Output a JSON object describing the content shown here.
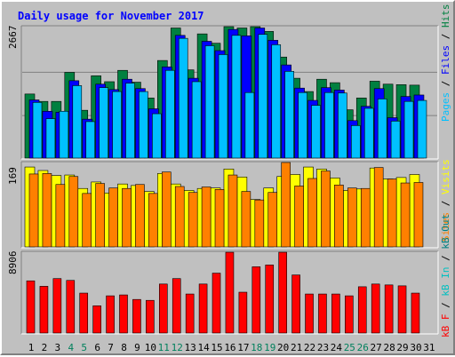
{
  "title": "Daily usage for November 2017",
  "colors": {
    "pages": "#00c0ff",
    "files": "#0000ff",
    "hits": "#008040",
    "visits": "#ffff00",
    "sites": "#ff8000",
    "kbin": "#00c0c0",
    "kbout": "#008080",
    "kbf": "#ff0000",
    "weekend_day": "#00805c",
    "weekday_day": "#000000",
    "title": "#0000ff"
  },
  "chart_data": [
    {
      "type": "bar",
      "name": "hits-files-pages",
      "categories": [
        "1",
        "2",
        "3",
        "4",
        "5",
        "6",
        "7",
        "8",
        "9",
        "10",
        "11",
        "12",
        "13",
        "14",
        "15",
        "16",
        "17",
        "18",
        "19",
        "20",
        "21",
        "22",
        "23",
        "24",
        "25",
        "26",
        "27",
        "28",
        "29",
        "30",
        "31"
      ],
      "ymax_label": "2667",
      "ylim": [
        0,
        2667
      ],
      "legend": [
        "Pages",
        "Files",
        "Hits"
      ],
      "series": [
        {
          "name": "Hits",
          "values": [
            1300,
            1150,
            1150,
            1740,
            970,
            1670,
            1550,
            1780,
            1540,
            1220,
            1980,
            2640,
            1790,
            2520,
            2330,
            2770,
            2640,
            2770,
            2570,
            2050,
            1620,
            1350,
            1600,
            1530,
            980,
            1220,
            1560,
            1500,
            1490,
            1480,
            0
          ]
        },
        {
          "name": "Files",
          "values": [
            1180,
            950,
            930,
            1570,
            790,
            1500,
            1390,
            1600,
            1410,
            1000,
            1850,
            2490,
            1620,
            2370,
            2180,
            2610,
            2480,
            2640,
            2390,
            1890,
            1420,
            1170,
            1430,
            1380,
            760,
            1050,
            1410,
            820,
            1250,
            1280,
            0
          ]
        },
        {
          "name": "Pages",
          "values": [
            1130,
            800,
            950,
            1470,
            740,
            1430,
            1350,
            1520,
            1350,
            900,
            1780,
            2430,
            1550,
            2280,
            2100,
            2490,
            1330,
            2510,
            2300,
            1760,
            1330,
            1070,
            1330,
            1320,
            660,
            1010,
            1200,
            750,
            1150,
            1170,
            0
          ]
        }
      ]
    },
    {
      "type": "bar",
      "name": "visits-sites",
      "categories": [
        "1",
        "2",
        "3",
        "4",
        "5",
        "6",
        "7",
        "8",
        "9",
        "10",
        "11",
        "12",
        "13",
        "14",
        "15",
        "16",
        "17",
        "18",
        "19",
        "20",
        "21",
        "22",
        "23",
        "24",
        "25",
        "26",
        "27",
        "28",
        "29",
        "30",
        "31"
      ],
      "ymax_label": "169",
      "ylim": [
        0,
        169
      ],
      "legend": [
        "Sites",
        "Visits"
      ],
      "series": [
        {
          "name": "Visits",
          "values": [
            160,
            153,
            143,
            144,
            117,
            130,
            108,
            126,
            123,
            111,
            147,
            126,
            113,
            117,
            118,
            156,
            140,
            95,
            118,
            141,
            145,
            160,
            156,
            138,
            113,
            116,
            158,
            136,
            139,
            145,
            0
          ]
        },
        {
          "name": "Sites",
          "values": [
            146,
            147,
            125,
            141,
            107,
            127,
            118,
            117,
            125,
            107,
            150,
            121,
            109,
            120,
            115,
            144,
            111,
            94,
            109,
            169,
            122,
            137,
            152,
            124,
            118,
            117,
            159,
            136,
            128,
            129,
            0
          ]
        }
      ]
    },
    {
      "type": "bar",
      "name": "kbf-kbin-kbout",
      "categories": [
        "1",
        "2",
        "3",
        "4",
        "5",
        "6",
        "7",
        "8",
        "9",
        "10",
        "11",
        "12",
        "13",
        "14",
        "15",
        "16",
        "17",
        "18",
        "19",
        "20",
        "21",
        "22",
        "23",
        "24",
        "25",
        "26",
        "27",
        "28",
        "29",
        "30",
        "31"
      ],
      "ymax_label": "8906",
      "ylim": [
        0,
        8906
      ],
      "legend": [
        "kB F",
        "kB In",
        "kB Out"
      ],
      "series": [
        {
          "name": "kB F",
          "values": [
            5750,
            5150,
            6000,
            5800,
            4400,
            3000,
            4100,
            4200,
            3700,
            3600,
            5400,
            6000,
            4300,
            5400,
            6600,
            8900,
            4500,
            7300,
            7500,
            8900,
            6400,
            4300,
            4300,
            4300,
            4100,
            5100,
            5400,
            5300,
            5200,
            4400,
            0
          ]
        },
        {
          "name": "kB In",
          "values": [
            0,
            0,
            0,
            0,
            0,
            0,
            0,
            0,
            0,
            0,
            0,
            0,
            0,
            0,
            0,
            0,
            0,
            0,
            0,
            0,
            0,
            0,
            0,
            0,
            0,
            0,
            0,
            0,
            0,
            0,
            0
          ]
        },
        {
          "name": "kB Out",
          "values": [
            0,
            0,
            0,
            0,
            0,
            0,
            0,
            0,
            0,
            0,
            0,
            0,
            0,
            0,
            0,
            0,
            0,
            0,
            0,
            0,
            0,
            0,
            0,
            0,
            0,
            0,
            0,
            0,
            0,
            0,
            0
          ]
        }
      ]
    }
  ],
  "weekend_days": [
    4,
    5,
    11,
    12,
    18,
    19,
    25,
    26
  ]
}
